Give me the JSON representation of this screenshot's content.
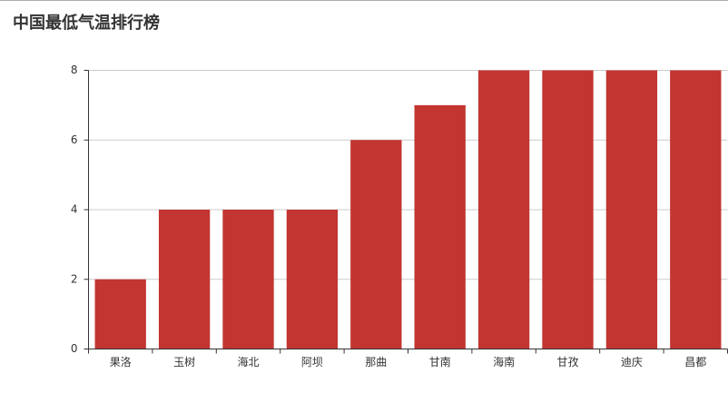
{
  "chart_data": {
    "type": "bar",
    "title": "中国最低气温排行榜",
    "categories": [
      "果洛",
      "玉树",
      "海北",
      "阿坝",
      "那曲",
      "甘南",
      "海南",
      "甘孜",
      "迪庆",
      "昌都"
    ],
    "values": [
      2,
      4,
      4,
      4,
      6,
      7,
      8,
      8,
      8,
      8
    ],
    "color": "#c23531",
    "ylim": [
      0,
      8
    ],
    "yticks": [
      0,
      2,
      4,
      6,
      8
    ],
    "grid": true
  }
}
